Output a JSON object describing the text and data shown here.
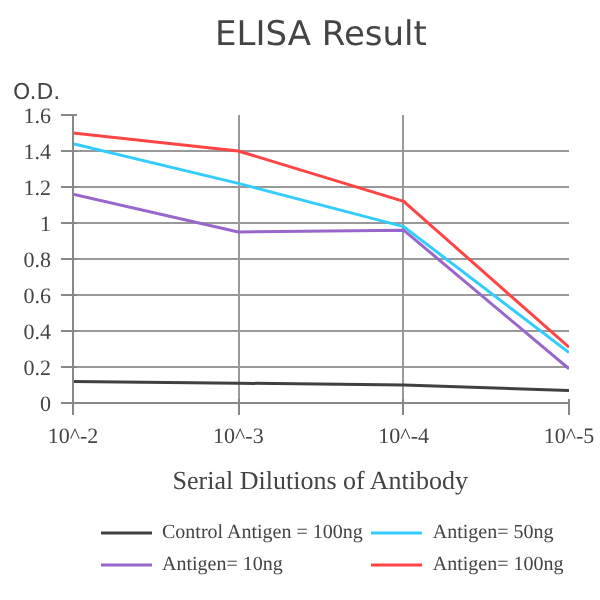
{
  "chart_data": {
    "type": "line",
    "title": "ELISA Result",
    "ylabel": "O.D.",
    "xlabel": "Serial Dilutions of Antibody",
    "categories": [
      "10^-2",
      "10^-3",
      "10^-4",
      "10^-5"
    ],
    "ylim": [
      0,
      1.6
    ],
    "yticks": [
      0,
      0.2,
      0.4,
      0.6,
      0.8,
      1,
      1.2,
      1.4,
      1.6
    ],
    "grid": true,
    "legend": "bottom",
    "marker": "none",
    "series": [
      {
        "name": "Control Antigen = 100ng",
        "color": "#404040",
        "values": [
          0.12,
          0.11,
          0.1,
          0.07
        ]
      },
      {
        "name": "Antigen= 10ng",
        "color": "#9966cc",
        "values": [
          1.16,
          0.95,
          0.96,
          0.19
        ]
      },
      {
        "name": "Antigen= 50ng",
        "color": "#33ccff",
        "values": [
          1.44,
          1.22,
          0.98,
          0.28
        ]
      },
      {
        "name": "Antigen= 100ng",
        "color": "#ff4444",
        "values": [
          1.5,
          1.4,
          1.12,
          0.31
        ]
      }
    ]
  }
}
